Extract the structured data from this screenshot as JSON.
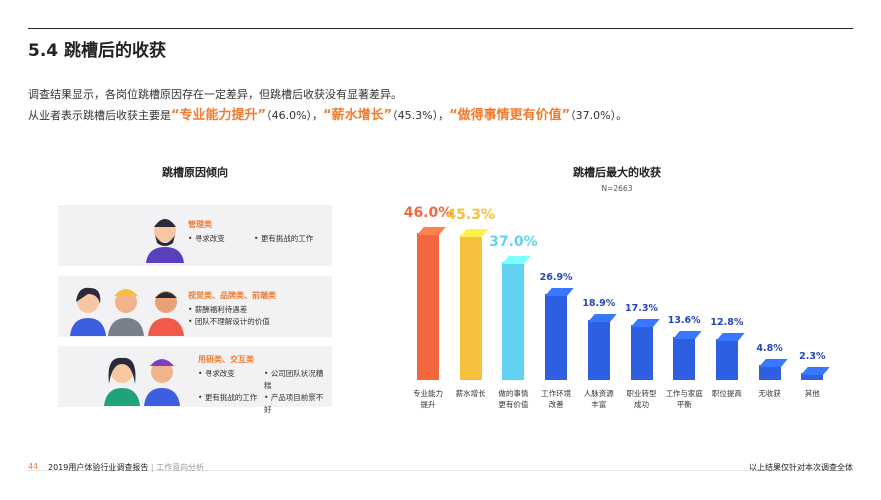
{
  "header": {
    "title": "5.4 跳槽后的收获"
  },
  "intro": {
    "line1": "调查结果显示，各岗位跳槽原因存在一定差异，但跳槽后收获没有显著差异。",
    "line2": [
      {
        "text": "从业者表示跳槽后收获主要是"
      },
      {
        "text": "“专业能力提升”",
        "em": true
      },
      {
        "text": "（46.0%），"
      },
      {
        "text": "“薪水增长”",
        "em": true
      },
      {
        "text": "（45.3%），"
      },
      {
        "text": "“做得事情更有价值”",
        "em": true
      },
      {
        "text": "（37.0%）。"
      }
    ]
  },
  "reasons": {
    "title": "跳槽原因倾向",
    "groups": [
      {
        "title": "管理类",
        "items": [
          "寻求改变",
          "更有挑战的工作"
        ]
      },
      {
        "title": "视觉类、品牌类、前端类",
        "items": [
          "薪酬福利待遇差",
          "团队不理解设计的价值"
        ]
      },
      {
        "title": "用研类、交互类",
        "items": [
          "寻求改变",
          "公司团队状况糟糕",
          "更有挑战的工作",
          "产品项目前景不好"
        ]
      }
    ]
  },
  "chart_data": {
    "type": "bar",
    "title": "跳槽后最大的收获",
    "subtitle": "N=2663",
    "categories": [
      "专业能力\n提升",
      "薪水增长",
      "做的事情\n更有价值",
      "工作环境\n改善",
      "人脉资源\n丰富",
      "职业转型\n成功",
      "工作与家庭\n平衡",
      "职位提高",
      "无收获",
      "其他"
    ],
    "values": [
      46.0,
      45.3,
      37.0,
      26.9,
      18.9,
      17.3,
      13.6,
      12.8,
      4.8,
      2.3
    ],
    "value_labels": [
      "46.0%",
      "45.3%",
      "37.0%",
      "26.9%",
      "18.9%",
      "17.3%",
      "13.6%",
      "12.8%",
      "4.8%",
      "2.3%"
    ],
    "colors": [
      "#f4663e",
      "#f7c03c",
      "#62d2f2",
      "#2d5fe2",
      "#2d5fe2",
      "#2d5fe2",
      "#2d5fe2",
      "#2d5fe2",
      "#2d5fe2",
      "#2d5fe2"
    ]
  },
  "footer": {
    "page": "44",
    "report": "2019用户体验行业调查报告",
    "section": "工作意向分析",
    "note": "以上结果仅针对本次调查全体"
  }
}
